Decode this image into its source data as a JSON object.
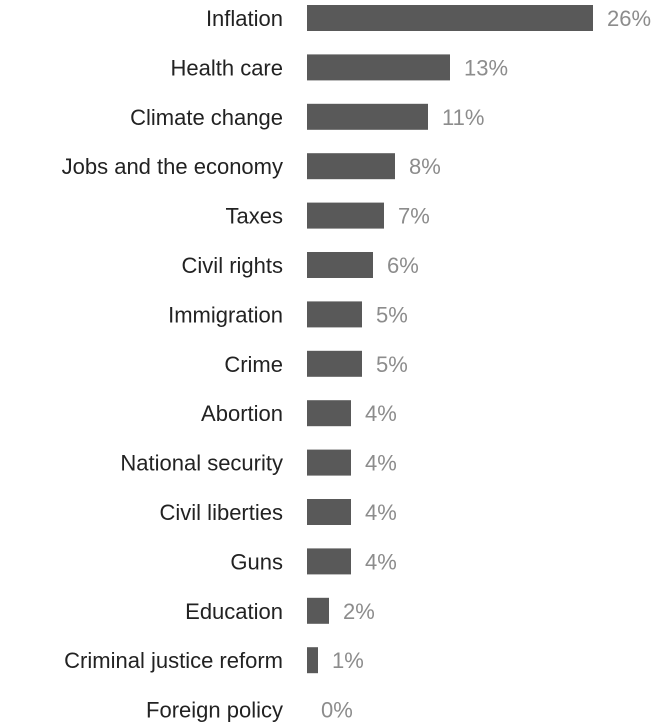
{
  "chart_data": {
    "type": "bar",
    "orientation": "horizontal",
    "categories": [
      "Inflation",
      "Health care",
      "Climate change",
      "Jobs and the economy",
      "Taxes",
      "Civil rights",
      "Immigration",
      "Crime",
      "Abortion",
      "National security",
      "Civil liberties",
      "Guns",
      "Education",
      "Criminal justice reform",
      "Foreign policy"
    ],
    "values": [
      26,
      13,
      11,
      8,
      7,
      6,
      5,
      5,
      4,
      4,
      4,
      4,
      2,
      1,
      0
    ],
    "value_labels": [
      "26%",
      "13%",
      "11%",
      "8%",
      "7%",
      "6%",
      "5%",
      "5%",
      "4%",
      "4%",
      "4%",
      "4%",
      "2%",
      "1%",
      "0%"
    ],
    "title": "",
    "xlabel": "",
    "ylabel": "",
    "xlim": [
      0,
      26
    ],
    "grid": false,
    "legend": "none",
    "bar_color": "#595959",
    "category_label_color": "#222222",
    "value_label_color": "#8c8c8c"
  }
}
